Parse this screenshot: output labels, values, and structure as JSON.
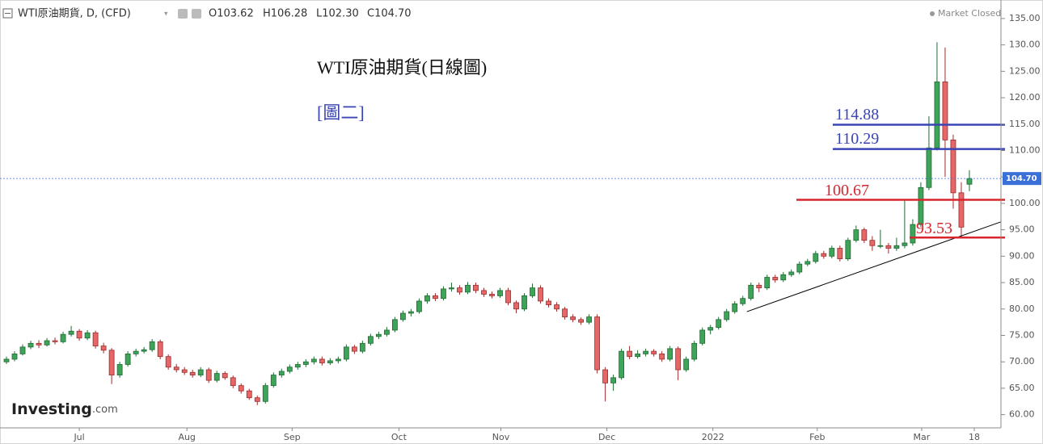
{
  "chart_data": {
    "type": "candlestick",
    "header_title": "WTI原油期貨, D, (CFD)",
    "ohlc_labels": [
      "O103.62",
      "H106.28",
      "L102.30",
      "C104.70"
    ],
    "status": "Market Closed",
    "title": "WTI原油期貨(日線圖)",
    "subtitle": "[圖二]",
    "logo": "Investing",
    "logo_suffix": ".com",
    "last_label": "104.70",
    "up_color": "#3fa35a",
    "down_color": "#e56767",
    "xlim": [
      -0.8,
      122.9
    ],
    "ylim": [
      57.5,
      138.5
    ],
    "xticks": [
      {
        "value": 9,
        "label": "Jul"
      },
      {
        "value": 22.3,
        "label": "Aug"
      },
      {
        "value": 35.3,
        "label": "Sep"
      },
      {
        "value": 48.5,
        "label": "Oct"
      },
      {
        "value": 61.1,
        "label": "Nov"
      },
      {
        "value": 74.2,
        "label": "Dec"
      },
      {
        "value": 87.3,
        "label": "2022"
      },
      {
        "value": 100.2,
        "label": "Feb"
      },
      {
        "value": 113.1,
        "label": "Mar"
      },
      {
        "value": 119.6,
        "label": "18"
      }
    ],
    "yticks": [
      {
        "value": 60,
        "label": "60.00"
      },
      {
        "value": 65,
        "label": "65.00"
      },
      {
        "value": 70,
        "label": "70.00"
      },
      {
        "value": 75,
        "label": "75.00"
      },
      {
        "value": 80,
        "label": "80.00"
      },
      {
        "value": 85,
        "label": "85.00"
      },
      {
        "value": 90,
        "label": "90.00"
      },
      {
        "value": 95,
        "label": "95.00"
      },
      {
        "value": 100,
        "label": "100.00"
      },
      {
        "value": 105,
        "label": "105.00"
      },
      {
        "value": 110,
        "label": "110.00"
      },
      {
        "value": 115,
        "label": "115.00"
      },
      {
        "value": 120,
        "label": "120.00"
      },
      {
        "value": 125,
        "label": "125.00"
      },
      {
        "value": 130,
        "label": "130.00"
      },
      {
        "value": 135,
        "label": "135.00"
      }
    ],
    "levels": [
      {
        "value": 114.88,
        "color": "#3a45b5"
      },
      {
        "value": 110.29,
        "color": "#3a45b5"
      },
      {
        "value": 100.67,
        "color": "#d8262e"
      },
      {
        "value": 93.53,
        "color": "#d8262e"
      }
    ],
    "trendline": {
      "x": [
        91.5,
        123
      ],
      "y": [
        79.5,
        96.5
      ]
    },
    "ohlc": [
      [
        70.0,
        71.0,
        69.6,
        70.5
      ],
      [
        70.5,
        72.0,
        70.1,
        71.5
      ],
      [
        71.5,
        73.3,
        71.2,
        72.8
      ],
      [
        72.8,
        74.0,
        72.4,
        73.5
      ],
      [
        73.5,
        74.1,
        72.6,
        73.2
      ],
      [
        73.2,
        74.5,
        72.9,
        74.0
      ],
      [
        74.0,
        74.6,
        73.3,
        73.8
      ],
      [
        73.8,
        75.7,
        73.5,
        75.2
      ],
      [
        75.2,
        76.8,
        74.8,
        75.8
      ],
      [
        75.8,
        76.2,
        74.0,
        74.5
      ],
      [
        74.5,
        76.0,
        74.1,
        75.5
      ],
      [
        75.5,
        75.9,
        72.5,
        73.0
      ],
      [
        73.0,
        73.6,
        71.6,
        72.2
      ],
      [
        72.2,
        72.6,
        65.8,
        67.5
      ],
      [
        67.5,
        70.0,
        67.0,
        69.5
      ],
      [
        69.5,
        72.0,
        69.1,
        71.5
      ],
      [
        71.5,
        72.5,
        71.0,
        72.0
      ],
      [
        72.0,
        72.8,
        71.6,
        72.3
      ],
      [
        72.3,
        74.3,
        71.9,
        73.8
      ],
      [
        73.8,
        74.2,
        70.5,
        71.0
      ],
      [
        71.0,
        71.4,
        68.5,
        69.0
      ],
      [
        69.0,
        69.6,
        68.0,
        68.5
      ],
      [
        68.5,
        69.0,
        67.5,
        68.0
      ],
      [
        68.0,
        68.5,
        67.0,
        67.5
      ],
      [
        67.5,
        69.0,
        67.1,
        68.5
      ],
      [
        68.5,
        68.9,
        66.0,
        66.5
      ],
      [
        66.5,
        68.3,
        66.1,
        67.8
      ],
      [
        67.8,
        68.2,
        66.6,
        67.0
      ],
      [
        67.0,
        67.4,
        65.0,
        65.5
      ],
      [
        65.5,
        65.9,
        64.0,
        64.5
      ],
      [
        64.5,
        64.9,
        62.8,
        63.2
      ],
      [
        63.2,
        63.6,
        61.8,
        62.5
      ],
      [
        62.5,
        66.0,
        62.1,
        65.5
      ],
      [
        65.5,
        68.0,
        65.1,
        67.5
      ],
      [
        67.5,
        68.7,
        67.0,
        68.2
      ],
      [
        68.2,
        69.5,
        67.8,
        69.0
      ],
      [
        69.0,
        70.0,
        68.5,
        69.5
      ],
      [
        69.5,
        70.5,
        69.0,
        70.0
      ],
      [
        70.0,
        71.0,
        69.5,
        70.5
      ],
      [
        70.5,
        71.0,
        69.3,
        69.8
      ],
      [
        69.8,
        70.7,
        69.4,
        70.2
      ],
      [
        70.2,
        71.0,
        69.7,
        70.5
      ],
      [
        70.5,
        73.3,
        70.1,
        72.8
      ],
      [
        72.8,
        73.2,
        71.5,
        72.0
      ],
      [
        72.0,
        74.0,
        71.6,
        73.5
      ],
      [
        73.5,
        75.3,
        73.1,
        74.8
      ],
      [
        74.8,
        75.7,
        74.3,
        75.2
      ],
      [
        75.2,
        76.6,
        74.8,
        76.0
      ],
      [
        76.0,
        78.5,
        75.6,
        78.0
      ],
      [
        78.0,
        79.7,
        77.6,
        79.2
      ],
      [
        79.2,
        80.0,
        78.6,
        79.5
      ],
      [
        79.5,
        82.0,
        79.1,
        81.5
      ],
      [
        81.5,
        83.0,
        81.0,
        82.5
      ],
      [
        82.5,
        83.0,
        81.5,
        82.0
      ],
      [
        82.0,
        84.3,
        81.6,
        83.8
      ],
      [
        83.8,
        85.0,
        83.3,
        84.0
      ],
      [
        84.0,
        84.5,
        82.7,
        83.2
      ],
      [
        83.2,
        85.1,
        82.8,
        84.5
      ],
      [
        84.5,
        85.0,
        83.0,
        83.5
      ],
      [
        83.5,
        84.0,
        82.3,
        82.8
      ],
      [
        82.8,
        83.3,
        82.0,
        82.5
      ],
      [
        82.5,
        84.0,
        82.1,
        83.5
      ],
      [
        83.5,
        84.0,
        80.7,
        81.2
      ],
      [
        81.2,
        81.6,
        79.2,
        80.0
      ],
      [
        80.0,
        83.0,
        79.6,
        82.5
      ],
      [
        82.5,
        84.8,
        82.1,
        84.0
      ],
      [
        84.0,
        84.5,
        81.0,
        81.5
      ],
      [
        81.5,
        82.0,
        80.3,
        80.8
      ],
      [
        80.8,
        81.3,
        79.5,
        80.0
      ],
      [
        80.0,
        80.4,
        78.0,
        78.5
      ],
      [
        78.5,
        79.0,
        77.5,
        78.0
      ],
      [
        78.0,
        78.4,
        77.0,
        77.5
      ],
      [
        77.5,
        79.0,
        77.1,
        78.5
      ],
      [
        78.5,
        79.0,
        67.8,
        68.5
      ],
      [
        68.5,
        69.0,
        62.5,
        66.0
      ],
      [
        66.0,
        67.6,
        64.5,
        67.0
      ],
      [
        67.0,
        72.5,
        66.6,
        72.0
      ],
      [
        72.0,
        73.0,
        70.5,
        71.0
      ],
      [
        71.0,
        72.2,
        70.6,
        71.5
      ],
      [
        71.5,
        72.5,
        71.0,
        72.0
      ],
      [
        72.0,
        72.4,
        71.0,
        71.5
      ],
      [
        71.5,
        72.0,
        70.0,
        70.5
      ],
      [
        70.5,
        73.0,
        70.1,
        72.5
      ],
      [
        72.5,
        72.9,
        66.5,
        68.5
      ],
      [
        68.5,
        71.0,
        68.1,
        70.5
      ],
      [
        70.5,
        74.0,
        70.1,
        73.5
      ],
      [
        73.5,
        76.5,
        73.1,
        76.0
      ],
      [
        76.0,
        77.0,
        75.2,
        76.5
      ],
      [
        76.5,
        78.5,
        76.1,
        78.0
      ],
      [
        78.0,
        80.0,
        77.6,
        79.5
      ],
      [
        79.5,
        81.5,
        79.1,
        81.0
      ],
      [
        81.0,
        82.5,
        80.6,
        82.0
      ],
      [
        82.0,
        85.0,
        81.6,
        84.5
      ],
      [
        84.5,
        85.0,
        83.2,
        84.0
      ],
      [
        84.0,
        86.5,
        83.6,
        86.0
      ],
      [
        86.0,
        86.5,
        85.0,
        85.5
      ],
      [
        85.5,
        87.0,
        85.1,
        86.5
      ],
      [
        86.5,
        87.5,
        86.1,
        87.0
      ],
      [
        87.0,
        89.0,
        86.6,
        88.5
      ],
      [
        88.5,
        89.5,
        88.1,
        89.0
      ],
      [
        89.0,
        91.0,
        88.6,
        90.5
      ],
      [
        90.5,
        91.0,
        89.5,
        90.0
      ],
      [
        90.0,
        92.0,
        89.6,
        91.5
      ],
      [
        91.5,
        92.0,
        89.0,
        89.5
      ],
      [
        89.5,
        93.5,
        89.1,
        93.0
      ],
      [
        93.0,
        95.8,
        92.6,
        95.0
      ],
      [
        95.0,
        95.4,
        92.5,
        93.0
      ],
      [
        93.0,
        93.8,
        91.0,
        92.0
      ],
      [
        92.0,
        95.0,
        91.5,
        92.0
      ],
      [
        92.0,
        92.5,
        90.5,
        91.5
      ],
      [
        91.5,
        93.5,
        91.0,
        92.0
      ],
      [
        92.0,
        100.5,
        91.5,
        92.5
      ],
      [
        92.5,
        97.0,
        92.0,
        96.0
      ],
      [
        96.0,
        104.0,
        95.5,
        103.0
      ],
      [
        103.0,
        116.5,
        102.5,
        110.5
      ],
      [
        110.5,
        130.5,
        110.0,
        123.0
      ],
      [
        123.0,
        129.5,
        105.0,
        112.0
      ],
      [
        112.0,
        113.0,
        99.0,
        102.0
      ],
      [
        102.0,
        104.0,
        93.5,
        95.5
      ],
      [
        103.62,
        106.28,
        102.3,
        104.7
      ]
    ]
  }
}
